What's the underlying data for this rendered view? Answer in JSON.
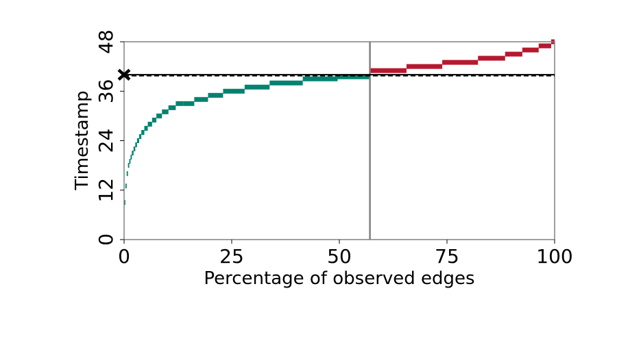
{
  "chart_data": {
    "type": "step",
    "xlabel": "Percentage of observed edges",
    "ylabel": "Timestamp",
    "xlim": [
      0,
      100
    ],
    "ylim": [
      0,
      48
    ],
    "x_ticks": [
      0,
      25,
      50,
      75,
      100
    ],
    "x_tick_labels": [
      "0",
      "25",
      "50",
      "75",
      "100"
    ],
    "y_ticks": [
      0,
      12,
      24,
      36,
      48
    ],
    "y_tick_labels": [
      "0",
      "12",
      "24",
      "36",
      "48"
    ],
    "split_x": 57.1,
    "threshold_y": 40,
    "threshold_marker": "x",
    "colors": {
      "before": "#00836f",
      "after": "#b5192f",
      "threshold": "#000000",
      "split": "#808080"
    },
    "series": [
      {
        "steps": [
          [
            0.0,
            0.3,
            9
          ],
          [
            0.3,
            0.6,
            13
          ],
          [
            0.6,
            0.9,
            16
          ],
          [
            0.9,
            1.2,
            18
          ],
          [
            1.2,
            1.5,
            19
          ],
          [
            1.5,
            1.8,
            20
          ],
          [
            1.8,
            2.2,
            21
          ],
          [
            2.2,
            2.6,
            22
          ],
          [
            2.6,
            3.0,
            23
          ],
          [
            3.0,
            3.5,
            24
          ],
          [
            3.5,
            4.0,
            25
          ],
          [
            4.0,
            4.7,
            26
          ],
          [
            4.7,
            5.5,
            27
          ],
          [
            5.5,
            6.5,
            28
          ],
          [
            6.5,
            7.5,
            29
          ],
          [
            7.5,
            8.8,
            30
          ],
          [
            8.8,
            10.3,
            31
          ],
          [
            10.3,
            12.0,
            32
          ],
          [
            12.0,
            13.8,
            33
          ],
          [
            13.8,
            16.3,
            33
          ],
          [
            16.3,
            19.5,
            34
          ],
          [
            19.5,
            23.0,
            35
          ],
          [
            23.0,
            28.0,
            36
          ],
          [
            28.0,
            33.8,
            37
          ],
          [
            33.8,
            41.5,
            38
          ],
          [
            41.5,
            49.6,
            39
          ],
          [
            49.6,
            57.1,
            39.5
          ]
        ]
      },
      {
        "steps": [
          [
            57.1,
            65.6,
            41
          ],
          [
            65.6,
            73.9,
            42
          ],
          [
            73.9,
            82.2,
            43
          ],
          [
            82.2,
            88.5,
            44
          ],
          [
            88.5,
            92.5,
            45
          ],
          [
            92.5,
            96.3,
            46
          ],
          [
            96.3,
            99.2,
            47
          ],
          [
            99.2,
            100.0,
            48
          ]
        ]
      }
    ]
  }
}
